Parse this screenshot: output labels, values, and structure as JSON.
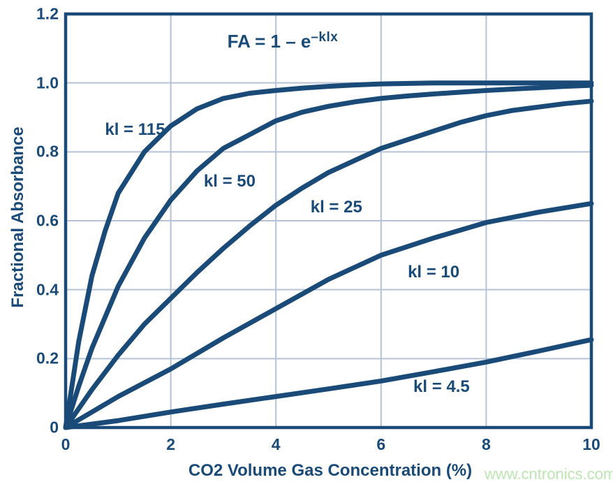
{
  "colors": {
    "curve": "#1A4B78",
    "text": "#1A4B78",
    "grid": "#B6C3D6",
    "border": "#1A4B78",
    "watermark": "#BCE5B2",
    "background": "#FFFFFF"
  },
  "formula": {
    "base": "FA = 1 – e",
    "exponent": "–klx"
  },
  "watermark": "www.cntronics.com",
  "chart_data": {
    "type": "line",
    "title": "FA = 1 – e^(–klx)",
    "xlabel": "CO2 Volume Gas Concentration (%)",
    "ylabel": "Fractional Absorbance",
    "xlim": [
      0,
      10
    ],
    "ylim": [
      0,
      1.2
    ],
    "x_ticks": [
      "0",
      "2",
      "4",
      "6",
      "8",
      "10"
    ],
    "y_ticks": [
      "0",
      "0.2",
      "0.4",
      "0.6",
      "0.8",
      "1.0",
      "1.2"
    ],
    "grid": true,
    "legend_position": "inline-labels",
    "series": [
      {
        "name": "kl = 115",
        "label": "kl = 115",
        "label_pos": {
          "x": 1.32,
          "y": 0.864
        },
        "points": [
          [
            0,
            0
          ],
          [
            0.25,
            0.25
          ],
          [
            0.5,
            0.44
          ],
          [
            0.75,
            0.57
          ],
          [
            1,
            0.68
          ],
          [
            1.5,
            0.8
          ],
          [
            2,
            0.875
          ],
          [
            2.5,
            0.925
          ],
          [
            3,
            0.955
          ],
          [
            3.5,
            0.97
          ],
          [
            4,
            0.978
          ],
          [
            4.5,
            0.985
          ],
          [
            5,
            0.99
          ],
          [
            5.5,
            0.994
          ],
          [
            6,
            0.997
          ],
          [
            7,
            1.0
          ],
          [
            8,
            1.0
          ],
          [
            9,
            1.0
          ],
          [
            10,
            1.0
          ]
        ]
      },
      {
        "name": "kl = 50",
        "label": "kl = 50",
        "label_pos": {
          "x": 3.12,
          "y": 0.714
        },
        "points": [
          [
            0,
            0
          ],
          [
            0.25,
            0.12
          ],
          [
            0.5,
            0.23
          ],
          [
            1,
            0.41
          ],
          [
            1.5,
            0.55
          ],
          [
            2,
            0.66
          ],
          [
            2.5,
            0.745
          ],
          [
            3,
            0.81
          ],
          [
            3.5,
            0.85
          ],
          [
            4,
            0.89
          ],
          [
            4.5,
            0.915
          ],
          [
            5,
            0.932
          ],
          [
            5.5,
            0.945
          ],
          [
            6,
            0.955
          ],
          [
            6.5,
            0.962
          ],
          [
            7,
            0.968
          ],
          [
            7.5,
            0.973
          ],
          [
            8,
            0.978
          ],
          [
            8.5,
            0.982
          ],
          [
            9,
            0.986
          ],
          [
            9.5,
            0.99
          ],
          [
            10,
            0.993
          ]
        ]
      },
      {
        "name": "kl = 25",
        "label": "kl = 25",
        "label_pos": {
          "x": 5.15,
          "y": 0.639
        },
        "points": [
          [
            0,
            0
          ],
          [
            0.5,
            0.11
          ],
          [
            1,
            0.21
          ],
          [
            1.5,
            0.3
          ],
          [
            2,
            0.375
          ],
          [
            2.5,
            0.45
          ],
          [
            3,
            0.52
          ],
          [
            3.5,
            0.585
          ],
          [
            4,
            0.645
          ],
          [
            4.5,
            0.695
          ],
          [
            5,
            0.74
          ],
          [
            5.5,
            0.775
          ],
          [
            6,
            0.81
          ],
          [
            6.5,
            0.835
          ],
          [
            7,
            0.86
          ],
          [
            7.5,
            0.885
          ],
          [
            8,
            0.905
          ],
          [
            8.5,
            0.92
          ],
          [
            9,
            0.93
          ],
          [
            9.5,
            0.94
          ],
          [
            10,
            0.947
          ]
        ]
      },
      {
        "name": "kl = 10",
        "label": "kl = 10",
        "label_pos": {
          "x": 7.0,
          "y": 0.45
        },
        "points": [
          [
            0,
            0
          ],
          [
            1,
            0.09
          ],
          [
            2,
            0.17
          ],
          [
            3,
            0.26
          ],
          [
            4,
            0.345
          ],
          [
            5,
            0.43
          ],
          [
            6,
            0.5
          ],
          [
            7,
            0.55
          ],
          [
            8,
            0.595
          ],
          [
            9,
            0.625
          ],
          [
            10,
            0.65
          ]
        ]
      },
      {
        "name": "kl = 4.5",
        "label": "kl = 4.5",
        "label_pos": {
          "x": 7.15,
          "y": 0.118
        },
        "points": [
          [
            0,
            0
          ],
          [
            1,
            0.02
          ],
          [
            2,
            0.045
          ],
          [
            3,
            0.068
          ],
          [
            4,
            0.09
          ],
          [
            5,
            0.112
          ],
          [
            6,
            0.135
          ],
          [
            7,
            0.162
          ],
          [
            8,
            0.19
          ],
          [
            9,
            0.222
          ],
          [
            10,
            0.255
          ]
        ]
      }
    ]
  }
}
